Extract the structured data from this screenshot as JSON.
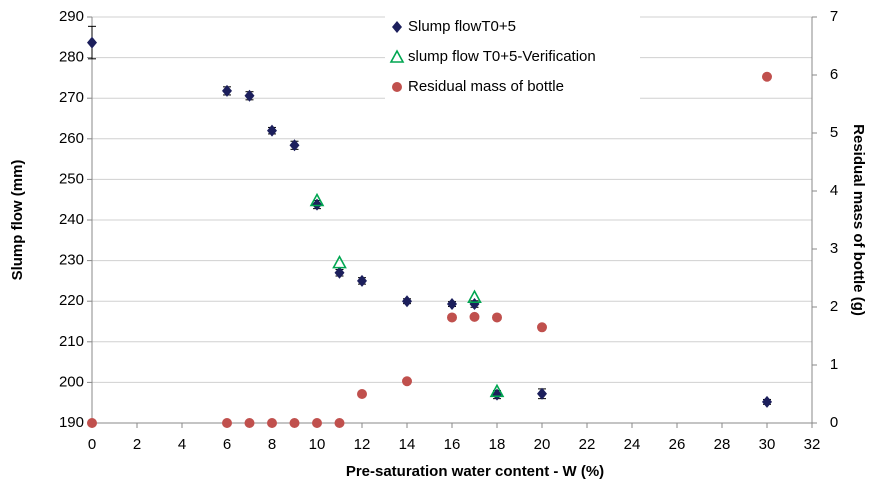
{
  "chart_data": {
    "type": "scatter",
    "x_label": "Pre-saturation water content  - W (%)",
    "y_label": "Slump flow (mm)",
    "y2_label": "Residual mass of bottle  (g)",
    "xlim": [
      0,
      32
    ],
    "xticks": [
      0,
      2,
      4,
      6,
      8,
      10,
      12,
      14,
      16,
      18,
      20,
      22,
      24,
      26,
      28,
      30,
      32
    ],
    "ylim": [
      190,
      290
    ],
    "yticks": [
      190,
      200,
      210,
      220,
      230,
      240,
      250,
      260,
      270,
      280,
      290
    ],
    "y2lim": [
      0,
      7
    ],
    "y2ticks": [
      0,
      1,
      2,
      3,
      4,
      5,
      6,
      7
    ],
    "grid": true,
    "legend": "top",
    "series": [
      {
        "name": "Slump flowT0+5",
        "color": "#1c1f5c",
        "marker": "diamond",
        "x": [
          0,
          6,
          7,
          8,
          9,
          10,
          11,
          12,
          14,
          16,
          17,
          18,
          20,
          30
        ],
        "values": [
          283.7,
          271.8,
          270.6,
          262,
          258.4,
          243.8,
          227,
          225,
          220,
          219.3,
          219.3,
          197,
          197.2,
          195.2
        ],
        "errors": [
          4,
          1,
          1,
          0.8,
          1,
          1,
          0.8,
          0.8,
          0.6,
          0.6,
          0.8,
          1,
          1.2,
          0.6
        ]
      },
      {
        "name": "slump flow T0+5-Verification",
        "color": "#00a651",
        "marker": "triangle",
        "x": [
          10,
          11,
          17,
          18
        ],
        "values": [
          244.8,
          229.5,
          221,
          197.8
        ]
      },
      {
        "name": "Residual mass of bottle",
        "color": "#c0504d",
        "marker": "circle",
        "axis": "y2",
        "x": [
          0,
          6,
          7,
          8,
          9,
          10,
          11,
          12,
          14,
          16,
          17,
          18,
          20,
          30
        ],
        "values": [
          0,
          0,
          0,
          0,
          0,
          0,
          0,
          0.5,
          0.72,
          1.82,
          1.83,
          1.82,
          1.65,
          5.97
        ]
      }
    ]
  }
}
